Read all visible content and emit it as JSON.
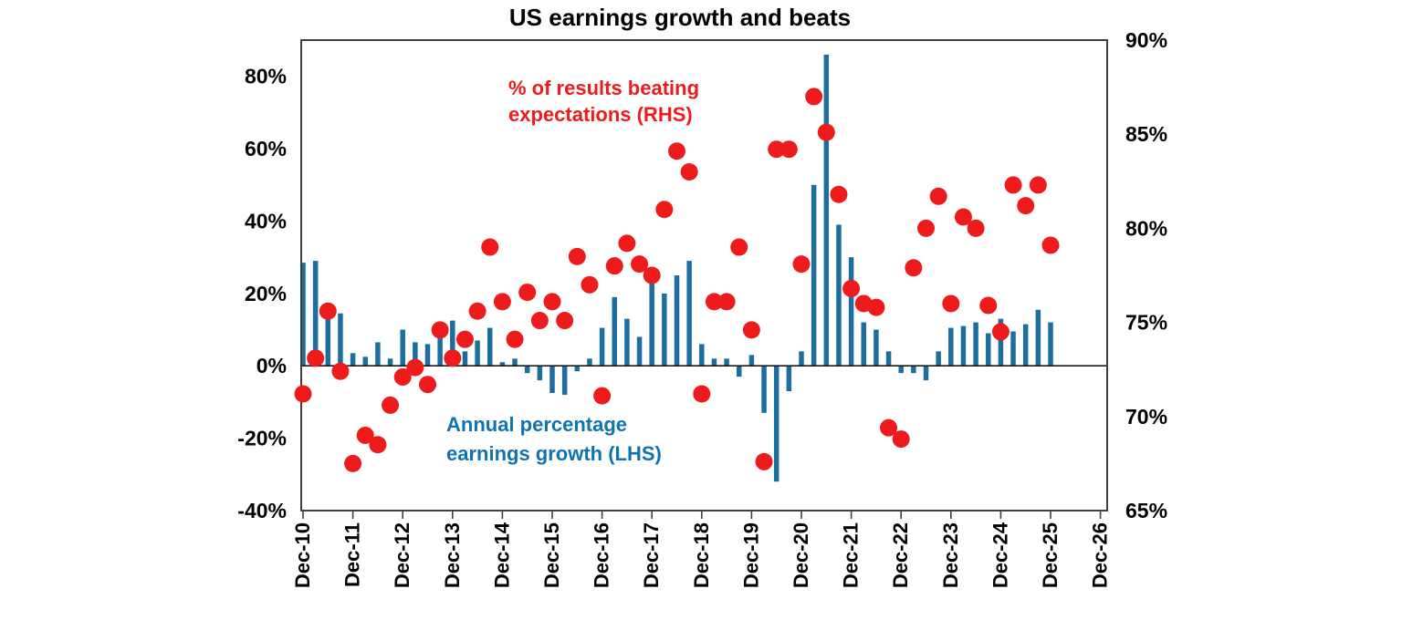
{
  "title": "US earnings growth and beats",
  "legend": {
    "rhs_line1": "% of results beating",
    "rhs_line2": "expectations (RHS)",
    "lhs_line1": "Annual percentage",
    "lhs_line2": "earnings growth (LHS)"
  },
  "colors": {
    "bar": "#1E6D9F",
    "dot": "#ED1B1B",
    "lhs_text": "#1173AD",
    "rhs_text": "#ED1B1B",
    "frame": "#3F3F3F",
    "zero_line": "#1A1A1A",
    "text": "#000000"
  },
  "chart_data": {
    "type": "bar",
    "title": "US earnings growth and beats",
    "x": [
      "Dec-10",
      "Mar-11",
      "Jun-11",
      "Sep-11",
      "Dec-11",
      "Mar-12",
      "Jun-12",
      "Sep-12",
      "Dec-12",
      "Mar-13",
      "Jun-13",
      "Sep-13",
      "Dec-13",
      "Mar-14",
      "Jun-14",
      "Sep-14",
      "Dec-14",
      "Mar-15",
      "Jun-15",
      "Sep-15",
      "Dec-15",
      "Mar-16",
      "Jun-16",
      "Sep-16",
      "Dec-16",
      "Mar-17",
      "Jun-17",
      "Sep-17",
      "Dec-17",
      "Mar-18",
      "Jun-18",
      "Sep-18",
      "Dec-18",
      "Mar-19",
      "Jun-19",
      "Sep-19",
      "Dec-19",
      "Mar-20",
      "Jun-20",
      "Sep-20",
      "Dec-20",
      "Mar-21",
      "Jun-21",
      "Sep-21",
      "Dec-21",
      "Mar-22",
      "Jun-22",
      "Sep-22",
      "Dec-22",
      "Mar-23",
      "Jun-23",
      "Sep-23",
      "Dec-23",
      "Mar-24",
      "Jun-24",
      "Sep-24",
      "Dec-24",
      "Mar-25",
      "Jun-25",
      "Sep-25",
      "Dec-25"
    ],
    "series": [
      {
        "name": "Annual percentage earnings growth (LHS)",
        "type": "bar",
        "axis": "left",
        "values": [
          28.5,
          29,
          14.5,
          14.5,
          3.5,
          2.5,
          6.5,
          2,
          10,
          6.5,
          6,
          8,
          12.5,
          4,
          7,
          10.5,
          1,
          2,
          -2,
          -4,
          -7.5,
          -8,
          -1.5,
          2,
          10.5,
          19,
          13,
          8,
          24,
          20,
          25,
          29,
          6,
          2,
          2,
          -3,
          3,
          -13,
          -32,
          -7,
          4,
          50,
          86,
          39,
          30,
          12,
          10,
          4,
          -2,
          -2,
          -4,
          4,
          10.5,
          11,
          12,
          9,
          13,
          9.5,
          11.5,
          15.5,
          12
        ]
      },
      {
        "name": "% of results beating expectations (RHS)",
        "type": "scatter",
        "axis": "right",
        "values": [
          71.2,
          73.1,
          75.6,
          72.4,
          67.5,
          69,
          68.5,
          70.6,
          72.1,
          72.6,
          71.7,
          74.6,
          73.1,
          74.1,
          75.6,
          79,
          76.1,
          74.1,
          76.6,
          75.1,
          76.1,
          75.1,
          78.5,
          77,
          71.1,
          78,
          79.2,
          78.1,
          77.5,
          81,
          84.1,
          83,
          71.2,
          76.1,
          76.1,
          79,
          74.6,
          67.6,
          84.2,
          84.2,
          78.1,
          87,
          85.1,
          81.8,
          76.8,
          76,
          75.8,
          69.4,
          68.8,
          77.9,
          80,
          81.7,
          76,
          80.6,
          80,
          75.9,
          74.5,
          82.3,
          81.2,
          82.3,
          79.1
        ]
      }
    ],
    "left_axis": {
      "min": -40,
      "max": 90,
      "ticks": [
        80,
        60,
        40,
        20,
        0,
        -20,
        -40
      ],
      "format": "%"
    },
    "right_axis": {
      "min": 65,
      "max": 90,
      "ticks": [
        90,
        85,
        80,
        75,
        70,
        65
      ],
      "format": "%"
    },
    "x_ticks": [
      "Dec-10",
      "Dec-11",
      "Dec-12",
      "Dec-13",
      "Dec-14",
      "Dec-15",
      "Dec-16",
      "Dec-17",
      "Dec-18",
      "Dec-19",
      "Dec-20",
      "Dec-21",
      "Dec-22",
      "Dec-23",
      "Dec-24",
      "Dec-25",
      "Dec-26"
    ],
    "grid": false,
    "legend_position": "inside-annotations"
  }
}
